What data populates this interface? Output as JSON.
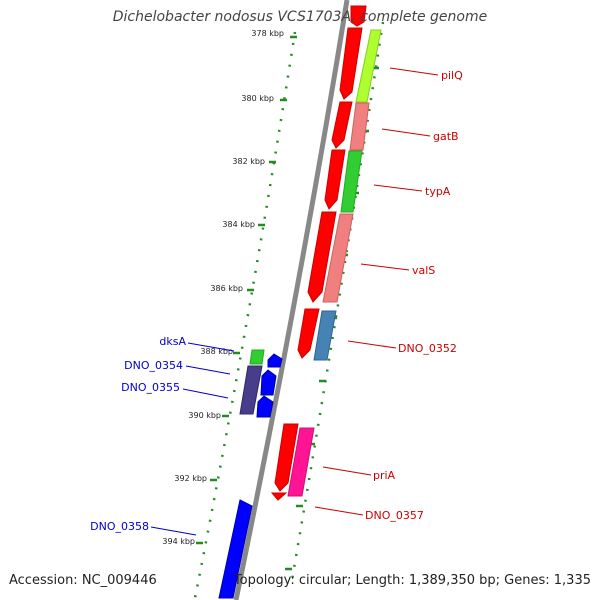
{
  "title": "Dichelobacter nodosus VCS1703A, complete genome",
  "footer": {
    "accession": "Accession: NC_009446",
    "summary": "Topology: circular; Length: 1,389,350 bp; Genes: 1,335"
  },
  "colors": {
    "forward_label": "#cc0000",
    "reverse_label": "#0000cc",
    "ruler_dots": "#228b22",
    "backbone": "#888888"
  },
  "ticks": [
    "378 kbp",
    "380 kbp",
    "382 kbp",
    "384 kbp",
    "386 kbp",
    "388 kbp",
    "390 kbp",
    "392 kbp",
    "394 kbp"
  ],
  "forward_labels": [
    "pilQ",
    "gatB",
    "typA",
    "valS",
    "DNO_0352",
    "priA",
    "DNO_0357"
  ],
  "reverse_labels": [
    "dksA",
    "DNO_0354",
    "DNO_0355",
    "DNO_0358"
  ]
}
